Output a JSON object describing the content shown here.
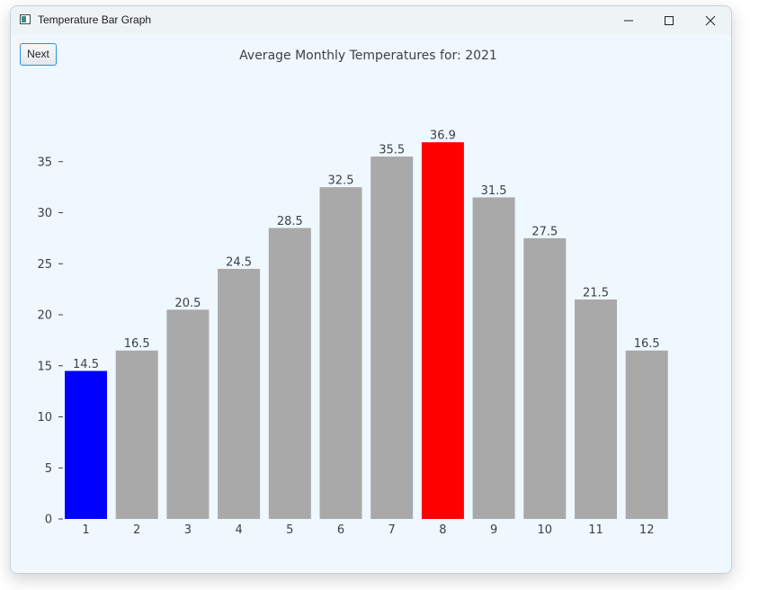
{
  "window": {
    "title": "Temperature Bar Graph",
    "icon": "app-window-icon"
  },
  "toolbar": {
    "next_label": "Next"
  },
  "chart_data": {
    "type": "bar",
    "title": "Average Monthly Temperatures for: 2021",
    "xlabel": "",
    "ylabel": "",
    "categories": [
      "1",
      "2",
      "3",
      "4",
      "5",
      "6",
      "7",
      "8",
      "9",
      "10",
      "11",
      "12"
    ],
    "values": [
      14.5,
      16.5,
      20.5,
      24.5,
      28.5,
      32.5,
      35.5,
      36.9,
      31.5,
      27.5,
      21.5,
      16.5
    ],
    "ylim": [
      0,
      37
    ],
    "yticks": [
      0,
      5,
      10,
      15,
      20,
      25,
      30,
      35
    ],
    "grid": false,
    "legend": "none",
    "colors": {
      "default": "#a9a9a9",
      "min": "#0000ff",
      "max": "#ff0000"
    }
  }
}
